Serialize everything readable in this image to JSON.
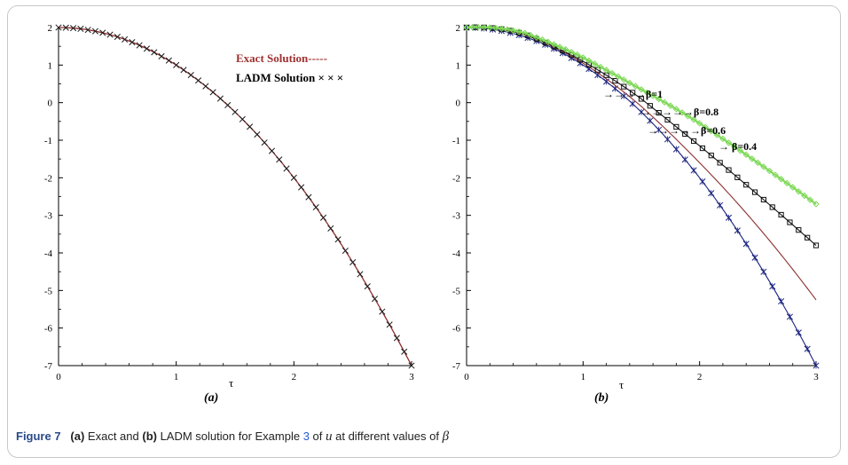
{
  "caption": {
    "figure_label": "Figure 7",
    "part_a": "(a)",
    "text_a": " Exact and ",
    "part_b": "(b)",
    "text_b": " LADM solution for Example ",
    "example_ref": "3",
    "text_c": " of ",
    "var_u": "u",
    "text_d": " at different values of ",
    "beta": "β"
  },
  "chart_data": [
    {
      "type": "line",
      "panel_label": "(a)",
      "xlabel": "τ",
      "ylabel": "",
      "xlim": [
        0,
        3
      ],
      "ylim": [
        -7,
        2
      ],
      "x_ticks": [
        "0",
        "1",
        "2",
        "3"
      ],
      "y_ticks": [
        "2",
        "1",
        "0",
        "-1",
        "-2",
        "-3",
        "-4",
        "-5",
        "-6",
        "-7"
      ],
      "grid": false,
      "legend": [
        "Exact Solution-----",
        "LADM Solution × × ×"
      ],
      "legend_position": "top-right",
      "series": [
        {
          "name": "Exact Solution",
          "style": "line",
          "color": "#8b2e2e",
          "x": [
            0,
            0.5,
            1,
            1.5,
            2,
            2.5,
            3
          ],
          "y": [
            2,
            1.75,
            1,
            -0.25,
            -2,
            -4.25,
            -7
          ]
        },
        {
          "name": "LADM Solution",
          "style": "x-markers",
          "color": "#1a1a1a",
          "x": [
            0,
            0.5,
            1,
            1.5,
            2,
            2.5,
            3
          ],
          "y": [
            2,
            1.75,
            1,
            -0.25,
            -2,
            -4.25,
            -7
          ]
        }
      ]
    },
    {
      "type": "line",
      "panel_label": "(b)",
      "xlabel": "τ",
      "ylabel": "",
      "xlim": [
        0,
        3
      ],
      "ylim": [
        -7,
        2
      ],
      "x_ticks": [
        "0",
        "1",
        "2",
        "3"
      ],
      "y_ticks": [
        "2",
        "1",
        "0",
        "-1",
        "-2",
        "-3",
        "-4",
        "-5",
        "-6",
        "-7"
      ],
      "grid": false,
      "annotations": [
        "→→→→β=1",
        "→→→→→β=0.8",
        "→→→→→β=0.6",
        "→ β=0.4"
      ],
      "series": [
        {
          "name": "β=1",
          "color": "#1a237e",
          "marker": "star",
          "x": [
            0,
            0.5,
            1,
            1.5,
            2,
            2.5,
            3
          ],
          "y": [
            2,
            1.75,
            1,
            -0.25,
            -2,
            -4.25,
            -7
          ]
        },
        {
          "name": "β=0.8",
          "color": "#8b2e2e",
          "marker": "none",
          "x": [
            0,
            0.5,
            1,
            1.5,
            2,
            2.5,
            3
          ],
          "y": [
            2,
            1.8,
            1.05,
            -0.1,
            -1.6,
            -3.3,
            -5.25
          ]
        },
        {
          "name": "β=0.6",
          "color": "#111111",
          "marker": "square",
          "x": [
            0,
            0.5,
            1,
            1.5,
            2,
            2.5,
            3
          ],
          "y": [
            2,
            1.82,
            1.1,
            0.1,
            -1.15,
            -2.45,
            -3.8
          ]
        },
        {
          "name": "β=0.4",
          "color": "#7ed957",
          "marker": "diamond",
          "x": [
            0,
            0.5,
            1,
            1.5,
            2,
            2.5,
            3
          ],
          "y": [
            2,
            1.85,
            1.2,
            0.35,
            -0.55,
            -1.6,
            -2.7
          ]
        }
      ]
    }
  ]
}
